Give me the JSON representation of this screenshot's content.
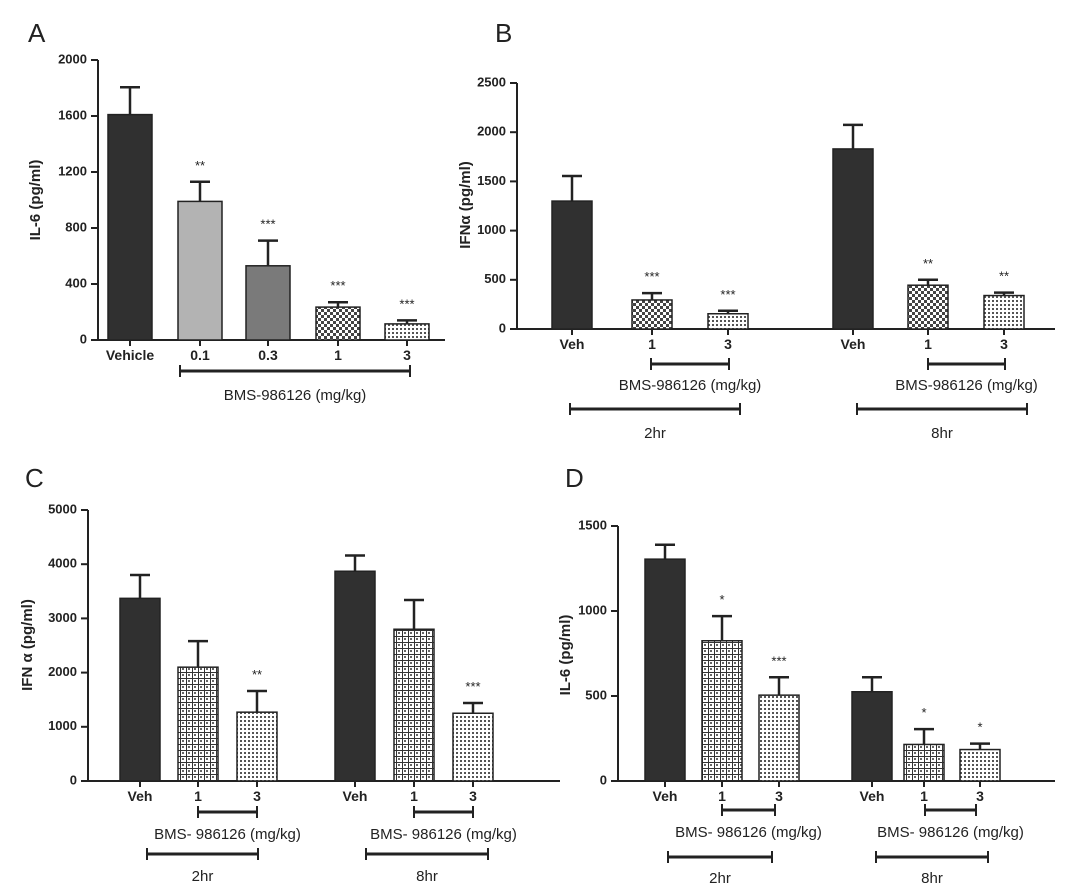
{
  "chart_data": [
    {
      "type": "bar",
      "panel": "A",
      "ylabel": "IL-6 (pg/ml)",
      "categories": [
        "Vehicle",
        "0.1",
        "0.3",
        "1",
        "3"
      ],
      "values": [
        1610,
        990,
        530,
        235,
        115
      ],
      "errors": [
        195,
        140,
        180,
        35,
        25
      ],
      "significance": [
        null,
        "**",
        "***",
        "***",
        "***"
      ],
      "fills": [
        "#303030",
        "#b3b3b3",
        "#7a7a7a",
        "checker",
        "dots"
      ],
      "ylim": [
        0,
        2000
      ],
      "yticks": [
        0,
        400,
        800,
        1200,
        1600,
        2000
      ],
      "dose_labels": [
        "BMS-986126 (mg/kg)"
      ],
      "time_labels": []
    },
    {
      "type": "bar",
      "panel": "B",
      "ylabel": "IFNα (pg/ml)",
      "categories": [
        "Veh",
        "1",
        "3",
        "Veh",
        "1",
        "3"
      ],
      "values": [
        1300,
        295,
        155,
        1830,
        445,
        340
      ],
      "errors": [
        255,
        70,
        30,
        245,
        55,
        30
      ],
      "significance": [
        null,
        "***",
        "***",
        null,
        "**",
        "**"
      ],
      "fills": [
        "#303030",
        "checker",
        "dots",
        "#303030",
        "checker",
        "dots"
      ],
      "ylim": [
        0,
        2500
      ],
      "yticks": [
        0,
        500,
        1000,
        1500,
        2000,
        2500
      ],
      "dose_labels": [
        "BMS-986126 (mg/kg)",
        "BMS-986126 (mg/kg)"
      ],
      "time_labels": [
        "2hr",
        "8hr"
      ]
    },
    {
      "type": "bar",
      "panel": "C",
      "ylabel": "IFN α (pg/ml)",
      "categories": [
        "Veh",
        "1",
        "3",
        "Veh",
        "1",
        "3"
      ],
      "values": [
        3370,
        2100,
        1270,
        3870,
        2800,
        1250
      ],
      "errors": [
        430,
        480,
        390,
        290,
        540,
        190
      ],
      "significance": [
        null,
        null,
        "**",
        null,
        null,
        "***"
      ],
      "fills": [
        "#303030",
        "grid",
        "dots",
        "#303030",
        "grid",
        "dots"
      ],
      "ylim": [
        0,
        5000
      ],
      "yticks": [
        0,
        1000,
        2000,
        3000,
        4000,
        5000
      ],
      "dose_labels": [
        "BMS- 986126 (mg/kg)",
        "BMS- 986126 (mg/kg)"
      ],
      "time_labels": [
        "2hr",
        "8hr"
      ]
    },
    {
      "type": "bar",
      "panel": "D",
      "ylabel": "IL-6 (pg/ml)",
      "categories": [
        "Veh",
        "1",
        "3",
        "Veh",
        "1",
        "3"
      ],
      "values": [
        1305,
        825,
        505,
        525,
        215,
        185
      ],
      "errors": [
        85,
        145,
        105,
        85,
        90,
        35
      ],
      "significance": [
        null,
        "*",
        "***",
        null,
        "*",
        "*"
      ],
      "fills": [
        "#303030",
        "grid",
        "dots",
        "#303030",
        "grid",
        "dots"
      ],
      "ylim": [
        0,
        1500
      ],
      "yticks": [
        0,
        500,
        1000,
        1500
      ],
      "dose_labels": [
        "BMS- 986126 (mg/kg)",
        "BMS- 986126 (mg/kg)"
      ],
      "time_labels": [
        "2hr",
        "8hr"
      ]
    }
  ]
}
